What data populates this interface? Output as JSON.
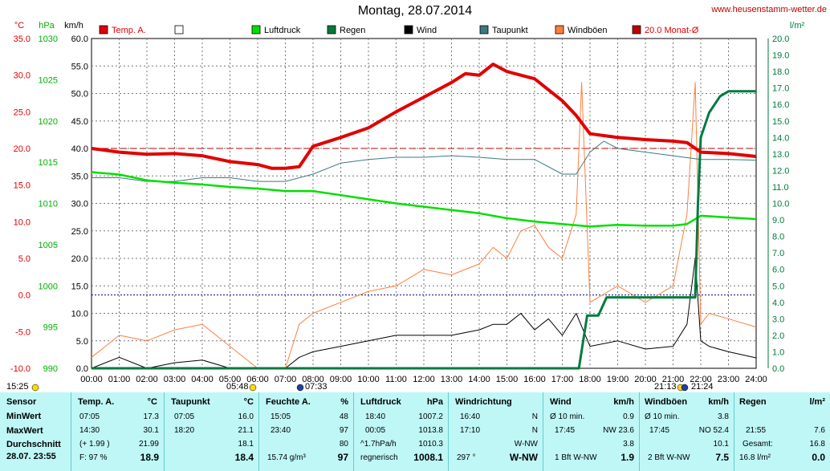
{
  "header": {
    "title": "Montag, 28.07.2014",
    "site": "www.heusenstamm-wetter.de"
  },
  "axes": {
    "temp_unit": "°C",
    "pres_unit": "hPa",
    "wind_unit": "km/h",
    "rain_unit": "l/m²",
    "temp_ticks": [
      "35.0",
      "30.0",
      "25.0",
      "20.0",
      "15.0",
      "10.0",
      "5.0",
      "0.0",
      "-5.0",
      "-10.0"
    ],
    "pres_ticks": [
      "1030",
      "1025",
      "1020",
      "1015",
      "1010",
      "1005",
      "1000",
      "995",
      "990"
    ],
    "wind_ticks": [
      "60.0",
      "55.0",
      "50.0",
      "45.0",
      "40.0",
      "35.0",
      "30.0",
      "25.0",
      "20.0",
      "15.0",
      "10.0",
      "5.0",
      "0.0"
    ],
    "rain_ticks": [
      "20.0",
      "19.0",
      "18.0",
      "17.0",
      "16.0",
      "15.0",
      "14.0",
      "13.0",
      "12.0",
      "11.0",
      "10.0",
      "9.0",
      "8.0",
      "7.0",
      "6.0",
      "5.0",
      "4.0",
      "3.0",
      "2.0",
      "1.0",
      "0.0"
    ],
    "x_ticks": [
      "00:00",
      "01:00",
      "02:00",
      "03:00",
      "04:00",
      "05:00",
      "06:00",
      "07:00",
      "08:00",
      "09:00",
      "10:00",
      "11:00",
      "12:00",
      "13:00",
      "14:00",
      "15:00",
      "16:00",
      "17:00",
      "18:00",
      "19:00",
      "20:00",
      "21:00",
      "22:00",
      "23:00",
      "24:00"
    ]
  },
  "legend": [
    {
      "label": "Temp. A.",
      "color": "#e00000"
    },
    {
      "label": "",
      "color": "#ffffff"
    },
    {
      "label": "Luftdruck",
      "color": "#00e000"
    },
    {
      "label": "Regen",
      "color": "#007a3d"
    },
    {
      "label": "Wind",
      "color": "#000000"
    },
    {
      "label": "Taupunkt",
      "color": "#3a7a80"
    },
    {
      "label": "Windböen",
      "color": "#ff7f3f"
    },
    {
      "label": "20.0 Monat-Ø",
      "color": "#c00000"
    }
  ],
  "astro": {
    "t1": "15:25",
    "t2": "05:48",
    "t3": "07:33",
    "t4": "21:13",
    "t5": "21:24"
  },
  "chart_data": {
    "type": "line",
    "x_unit": "hours",
    "series": [
      {
        "name": "Temp. A.",
        "axis": "°C",
        "color": "#e00000",
        "x": [
          0,
          1,
          2,
          3,
          4,
          5,
          6,
          6.5,
          7,
          7.5,
          8,
          9,
          10,
          11,
          12,
          13,
          13.5,
          14,
          14.5,
          15,
          15.5,
          16,
          16.5,
          17,
          17.5,
          18,
          19,
          20,
          21,
          21.5,
          22,
          23,
          24
        ],
        "y": [
          20.0,
          19.5,
          19.2,
          19.3,
          19.0,
          18.2,
          17.8,
          17.3,
          17.3,
          17.5,
          20.3,
          21.5,
          22.8,
          25.0,
          27.0,
          29.0,
          30.2,
          30.0,
          31.5,
          30.5,
          30.0,
          29.5,
          28.0,
          26.5,
          24.5,
          22.0,
          21.5,
          21.2,
          21.0,
          20.8,
          19.5,
          19.3,
          18.9
        ]
      },
      {
        "name": "Taupunkt",
        "axis": "°C",
        "color": "#3a7a80",
        "x": [
          0,
          1,
          2,
          3,
          4,
          5,
          6,
          7,
          8,
          9,
          10,
          11,
          12,
          13,
          14,
          15,
          16,
          17,
          17.5,
          18,
          18.5,
          19,
          20,
          21,
          22,
          23,
          24
        ],
        "y": [
          16.0,
          16.0,
          15.5,
          15.5,
          16.0,
          16.0,
          15.5,
          15.5,
          16.5,
          18.0,
          18.5,
          18.8,
          18.8,
          19.0,
          18.8,
          18.5,
          18.5,
          16.5,
          16.5,
          19.5,
          21.0,
          20.0,
          19.5,
          19.0,
          18.5,
          18.5,
          18.4
        ]
      },
      {
        "name": "Luftdruck",
        "axis": "hPa",
        "color": "#00e000",
        "x": [
          0,
          1,
          2,
          3,
          4,
          5,
          6,
          7,
          8,
          9,
          10,
          11,
          12,
          13,
          14,
          15,
          16,
          17,
          18,
          19,
          20,
          21,
          21.5,
          22,
          23,
          24
        ],
        "y": [
          1013.8,
          1013.5,
          1012.8,
          1012.5,
          1012.3,
          1012.0,
          1011.8,
          1011.5,
          1011.5,
          1011.0,
          1010.5,
          1010.0,
          1009.6,
          1009.2,
          1008.8,
          1008.2,
          1007.8,
          1007.5,
          1007.2,
          1007.4,
          1007.3,
          1007.3,
          1007.5,
          1008.5,
          1008.3,
          1008.1
        ]
      },
      {
        "name": "Regen",
        "axis": "l/m²",
        "color": "#007a3d",
        "x": [
          0,
          17.6,
          17.9,
          18.3,
          18.6,
          19,
          20,
          21,
          21.8,
          21.9,
          22.0,
          22.3,
          22.7,
          23,
          24
        ],
        "y": [
          0,
          0,
          3.2,
          3.2,
          4.3,
          4.3,
          4.3,
          4.3,
          4.3,
          10.0,
          14.0,
          15.5,
          16.5,
          16.8,
          16.8
        ]
      },
      {
        "name": "Wind",
        "axis": "km/h",
        "color": "#000000",
        "x": [
          0,
          1,
          2,
          3,
          4,
          5,
          6,
          7,
          7.5,
          8,
          9,
          10,
          11,
          12,
          13,
          14,
          14.5,
          15,
          15.5,
          16,
          16.5,
          17,
          17.5,
          18,
          19,
          20,
          21,
          21.5,
          21.8,
          22,
          22.3,
          23,
          24
        ],
        "y": [
          0,
          2,
          0,
          1,
          1.5,
          0,
          0,
          0,
          2,
          3,
          4,
          5,
          6,
          6,
          6,
          7,
          8,
          8,
          10,
          7,
          9,
          6,
          10,
          4,
          5,
          3.5,
          4,
          8,
          20,
          5,
          4,
          3,
          1.9
        ]
      },
      {
        "name": "Windböen",
        "axis": "km/h",
        "color": "#ff7f3f",
        "x": [
          0,
          1,
          2,
          3,
          4,
          5,
          6,
          7,
          7.5,
          8,
          9,
          10,
          11,
          12,
          13,
          14,
          14.5,
          15,
          15.5,
          16,
          16.5,
          17,
          17.5,
          17.7,
          18,
          19,
          20,
          21,
          21.5,
          21.8,
          22,
          22.3,
          23,
          24
        ],
        "y": [
          2,
          6,
          5,
          7,
          8,
          4,
          0,
          0,
          8,
          10,
          12,
          14,
          15,
          18,
          17,
          19,
          22,
          20,
          25,
          26,
          22,
          20,
          28,
          52,
          12,
          15,
          12,
          15,
          28,
          52,
          8,
          10,
          9,
          7.5
        ]
      }
    ],
    "ref_lines": [
      {
        "name": "20.0 Monat-Ø",
        "axis": "°C",
        "y": 20.0,
        "color": "#c00000",
        "style": "dash"
      }
    ]
  },
  "table": {
    "col1": {
      "h": "Sensor",
      "rows": [
        "MinWert",
        "MaxWert",
        "Durchschnitt",
        "28.07. 23:55"
      ]
    },
    "temp": {
      "h": "Temp. A.",
      "unit": "°C",
      "r1a": "07:05",
      "r1b": "17.3",
      "r2a": "14:30",
      "r2b": "30.1",
      "r3a": "(+ 1.99 )",
      "r3b": "21.99",
      "r4a": "F: 97 %",
      "r4b": "18.9"
    },
    "tau": {
      "h": "Taupunkt",
      "unit": "°C",
      "r1a": "07:05",
      "r1b": "16.0",
      "r2a": "18:20",
      "r2b": "21.1",
      "r3b": "18.1",
      "r4b": "18.4"
    },
    "feu": {
      "h": "Feuchte A.",
      "unit": "%",
      "r1a": "15:05",
      "r1b": "48",
      "r2a": "23:40",
      "r2b": "97",
      "r3b": "80",
      "r4a": "15.74 g/m³",
      "r4b": "97"
    },
    "luft": {
      "h": "Luftdruck",
      "unit": "hPa",
      "r1a": "18:40",
      "r1b": "1007.2",
      "r2a": "00:05",
      "r2b": "1013.8",
      "r3a": "^1.7hPa/h",
      "r3b": "1010.3",
      "r4a": "regnerisch",
      "r4b": "1008.1"
    },
    "dir": {
      "h": "Windrichtung",
      "r1a": "16:40",
      "r1b": "N",
      "r2a": "17:10",
      "r2b": "N",
      "r3b": "W-NW",
      "r4a": "297 °",
      "r4b": "W-NW"
    },
    "wind": {
      "h": "Wind",
      "unit": "km/h",
      "r1a": "Ø 10 min.",
      "r1b": "0.9",
      "r2a": "17:45",
      "r2m": "NW 23.6",
      "r3b": "3.8",
      "r4a": "1 Bft W-NW",
      "r4b": "1.9"
    },
    "boen": {
      "h": "Windböen",
      "unit": "km/h",
      "r1a": "Ø 10 min.",
      "r1b": "3.8",
      "r2a": "17:45",
      "r2m": "NO 52.4",
      "r3b": "10.1",
      "r4a": "2 Bft W-NW",
      "r4b": "7.5"
    },
    "regen": {
      "h": "Regen",
      "unit": "l/m²",
      "r2a": "21:55",
      "r2b": "7.6",
      "r3a": "Gesamt:",
      "r3b": "16.8",
      "r4a": "16.8 l/m²",
      "r4b": "0.0"
    }
  }
}
